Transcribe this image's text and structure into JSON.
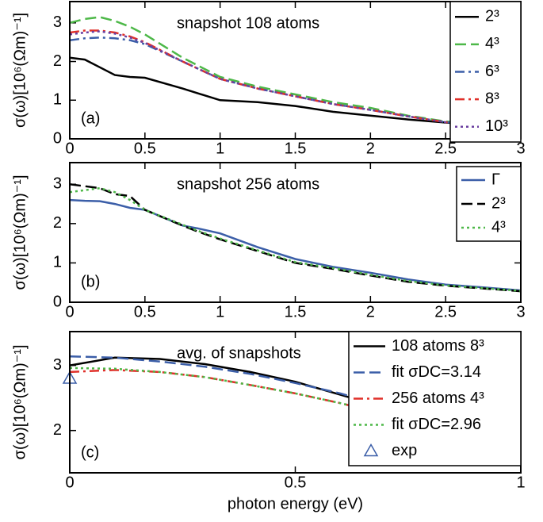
{
  "chart_data": [
    {
      "type": "line",
      "annotation": "snapshot 108 atoms",
      "panel_label": "(a)",
      "y_label": "σ(ω)[10⁶(Ωm)⁻¹]",
      "x": [
        0,
        0.1,
        0.2,
        0.3,
        0.4,
        0.5,
        0.75,
        1,
        1.25,
        1.5,
        1.75,
        2,
        2.25,
        2.5,
        2.75,
        3
      ],
      "xlim": [
        0,
        3
      ],
      "xticks": [
        0,
        0.5,
        1,
        1.5,
        2,
        2.5,
        3
      ],
      "ylim": [
        0,
        3.55
      ],
      "yticks": [
        0,
        1,
        2,
        3
      ],
      "legend": "upper right",
      "series": [
        {
          "name": "2³",
          "color": "#000000",
          "style": "solid",
          "values": [
            2.1,
            2.05,
            1.85,
            1.65,
            1.6,
            1.58,
            1.3,
            1.0,
            0.95,
            0.85,
            0.7,
            0.6,
            0.5,
            0.42,
            0.35,
            0.3
          ]
        },
        {
          "name": "4³",
          "color": "#4db848",
          "style": "dashed",
          "values": [
            3.0,
            3.1,
            3.15,
            3.05,
            2.9,
            2.7,
            2.1,
            1.6,
            1.35,
            1.15,
            0.95,
            0.8,
            0.6,
            0.45,
            0.36,
            0.3
          ]
        },
        {
          "name": "6³",
          "color": "#3b5ea8",
          "style": "dashdot",
          "values": [
            2.55,
            2.6,
            2.62,
            2.6,
            2.55,
            2.45,
            2.0,
            1.55,
            1.3,
            1.1,
            0.9,
            0.75,
            0.58,
            0.43,
            0.35,
            0.3
          ]
        },
        {
          "name": "8³",
          "color": "#e0302a",
          "style": "dashdot",
          "values": [
            2.75,
            2.8,
            2.8,
            2.75,
            2.65,
            2.5,
            2.0,
            1.55,
            1.3,
            1.1,
            0.9,
            0.75,
            0.58,
            0.43,
            0.35,
            0.3
          ]
        },
        {
          "name": "10³",
          "color": "#6b3fa0",
          "style": "dotted",
          "values": [
            2.7,
            2.75,
            2.78,
            2.72,
            2.62,
            2.48,
            2.0,
            1.55,
            1.3,
            1.1,
            0.9,
            0.75,
            0.58,
            0.43,
            0.35,
            0.3
          ]
        }
      ]
    },
    {
      "type": "line",
      "annotation": "snapshot 256 atoms",
      "panel_label": "(b)",
      "y_label": "σ(ω)[10⁶(Ωm)⁻¹]",
      "x": [
        0,
        0.1,
        0.2,
        0.3,
        0.4,
        0.5,
        0.75,
        0.85,
        1,
        1.25,
        1.5,
        1.75,
        2,
        2.25,
        2.5,
        2.75,
        3
      ],
      "xlim": [
        0,
        3
      ],
      "xticks": [
        0,
        0.5,
        1,
        1.5,
        2,
        2.5,
        3
      ],
      "ylim": [
        0,
        3.55
      ],
      "yticks": [
        0,
        1,
        2,
        3
      ],
      "legend": "upper right",
      "series": [
        {
          "name": "Γ",
          "color": "#3b5ea8",
          "style": "solid",
          "values": [
            2.6,
            2.58,
            2.57,
            2.5,
            2.4,
            2.35,
            1.95,
            1.88,
            1.75,
            1.4,
            1.1,
            0.9,
            0.75,
            0.58,
            0.45,
            0.38,
            0.3
          ]
        },
        {
          "name": "2³",
          "color": "#000000",
          "style": "dashed",
          "values": [
            3.0,
            2.95,
            2.9,
            2.75,
            2.7,
            2.35,
            1.95,
            1.8,
            1.6,
            1.3,
            1.0,
            0.85,
            0.68,
            0.52,
            0.42,
            0.35,
            0.28
          ]
        },
        {
          "name": "4³",
          "color": "#4db848",
          "style": "dotted",
          "values": [
            2.8,
            2.85,
            2.9,
            2.8,
            2.6,
            2.35,
            1.97,
            1.82,
            1.62,
            1.32,
            1.02,
            0.87,
            0.7,
            0.54,
            0.43,
            0.36,
            0.29
          ]
        }
      ]
    },
    {
      "type": "line",
      "annotation": "avg. of snapshots",
      "panel_label": "(c)",
      "y_label": "σ(ω)[10⁶(Ωm)⁻¹]",
      "x_label": "photon energy (eV)",
      "x": [
        0,
        0.1,
        0.2,
        0.3,
        0.4,
        0.5,
        0.6,
        0.7,
        0.8,
        0.9,
        1
      ],
      "xlim": [
        0,
        1
      ],
      "xticks": [
        0,
        0.5,
        1
      ],
      "ylim": [
        1.35,
        3.52
      ],
      "yticks": [
        2,
        3
      ],
      "legend": "upper right",
      "series": [
        {
          "name": "108 atoms 8³",
          "color": "#000000",
          "style": "solid",
          "values": [
            3.0,
            3.12,
            3.1,
            3.02,
            2.9,
            2.75,
            2.55,
            2.35,
            2.15,
            1.95,
            1.55
          ]
        },
        {
          "name": "fit  σDC=3.14",
          "color": "#3b5ea8",
          "style": "dashed",
          "values": [
            3.14,
            3.12,
            3.06,
            2.98,
            2.87,
            2.73,
            2.57,
            2.37,
            2.16,
            1.93,
            1.7
          ]
        },
        {
          "name": "256 atoms 4³",
          "color": "#e0302a",
          "style": "dashdot",
          "values": [
            2.9,
            2.93,
            2.9,
            2.82,
            2.7,
            2.57,
            2.42,
            2.25,
            2.05,
            1.85,
            1.6
          ]
        },
        {
          "name": "fit  σDC=2.96",
          "color": "#4db848",
          "style": "dotted",
          "values": [
            2.96,
            2.95,
            2.9,
            2.82,
            2.7,
            2.57,
            2.42,
            2.25,
            2.05,
            1.85,
            1.6
          ]
        },
        {
          "name": "exp",
          "color": "#3b5ea8",
          "style": "marker",
          "x": [
            0
          ],
          "values": [
            2.8
          ]
        }
      ]
    }
  ]
}
